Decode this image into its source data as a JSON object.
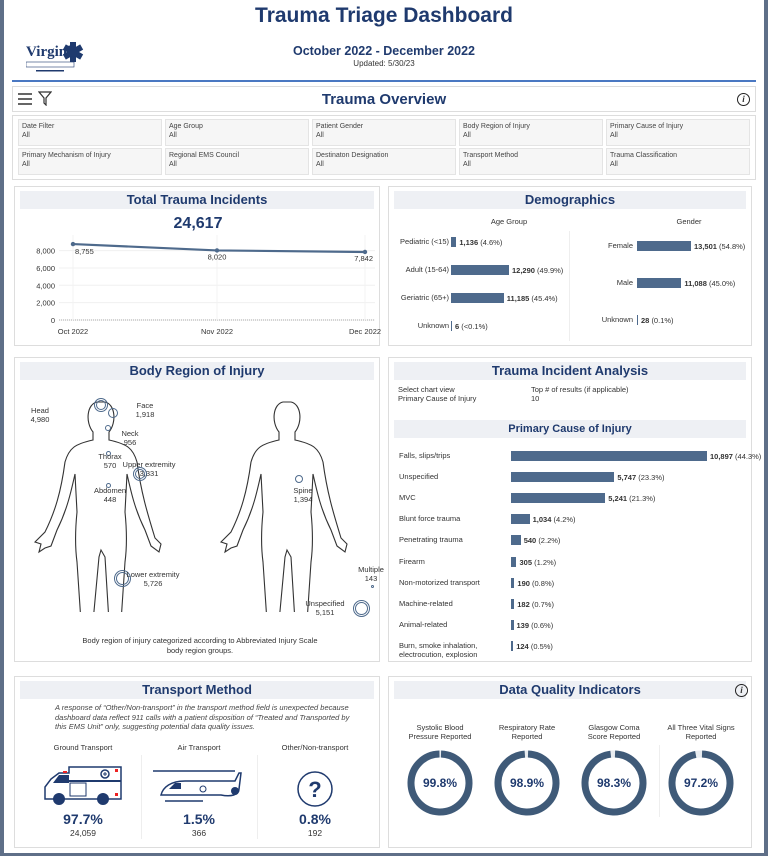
{
  "header": {
    "title": "Trauma Triage Dashboard",
    "date_range": "October 2022 - December 2022",
    "updated": "Updated: 5/30/23",
    "logo_text": "Virginia Office of Emergency Medical Services"
  },
  "overview": {
    "title": "Trauma Overview",
    "menu_icon": "hamburger-icon",
    "filter_icon": "funnel-icon",
    "info_icon": "info-icon",
    "filters": [
      {
        "label": "Date Filter",
        "value": "All"
      },
      {
        "label": "Age Group",
        "value": "All"
      },
      {
        "label": "Patient Gender",
        "value": "All"
      },
      {
        "label": "Body Region of Injury",
        "value": "All"
      },
      {
        "label": "Primary Cause of Injury",
        "value": "All"
      },
      {
        "label": "Primary Mechanism of Injury",
        "value": "All"
      },
      {
        "label": "Regional EMS Council",
        "value": "All"
      },
      {
        "label": "Destinaton Designation",
        "value": "All"
      },
      {
        "label": "Transport Method",
        "value": "All"
      },
      {
        "label": "Trauma Classification",
        "value": "All"
      }
    ]
  },
  "total": {
    "title": "Total Trauma Incidents",
    "value": "24,617"
  },
  "chart_data": [
    {
      "type": "line",
      "title": "Total Trauma Incidents",
      "categories": [
        "Oct 2022",
        "Nov 2022",
        "Dec 2022"
      ],
      "values": [
        8755,
        8020,
        7842
      ],
      "data_labels": [
        "8,755",
        "8,020",
        "7,842"
      ],
      "yticks": [
        "0",
        "2,000",
        "4,000",
        "6,000",
        "8,000"
      ],
      "ylim": [
        0,
        9800
      ],
      "grid": true,
      "color": "#4e6a8c"
    },
    {
      "type": "bar",
      "orientation": "horizontal",
      "title": "Age Group",
      "categories": [
        "Pediatric (<15)",
        "Adult (15-64)",
        "Geriatric (65+)",
        "Unknown"
      ],
      "values": [
        1136,
        12290,
        11185,
        6
      ],
      "data_labels": [
        "1,136",
        "12,290",
        "11,185",
        "6"
      ],
      "pct_labels": [
        "(4.6%)",
        "(49.9%)",
        "(45.4%)",
        "(<0.1%)"
      ]
    },
    {
      "type": "bar",
      "orientation": "horizontal",
      "title": "Gender",
      "categories": [
        "Female",
        "Male",
        "Unknown"
      ],
      "values": [
        13501,
        11088,
        28
      ],
      "data_labels": [
        "13,501",
        "11,088",
        "28"
      ],
      "pct_labels": [
        "(54.8%)",
        "(45.0%)",
        "(0.1%)"
      ]
    },
    {
      "type": "bar",
      "orientation": "horizontal",
      "title": "Primary Cause of Injury",
      "categories": [
        "Falls, slips/trips",
        "Unspecified",
        "MVC",
        "Blunt force trauma",
        "Penetrating trauma",
        "Firearm",
        "Non-motorized transport",
        "Machine-related",
        "Animal-related",
        "Burn, smoke inhalation, electrocution, explosion"
      ],
      "values": [
        10897,
        5747,
        5241,
        1034,
        540,
        305,
        190,
        182,
        139,
        124
      ],
      "data_labels": [
        "10,897",
        "5,747",
        "5,241",
        "1,034",
        "540",
        "305",
        "190",
        "182",
        "139",
        "124"
      ],
      "pct_labels": [
        "(44.3%)",
        "(23.3%)",
        "(21.3%)",
        "(4.2%)",
        "(2.2%)",
        "(1.2%)",
        "(0.8%)",
        "(0.7%)",
        "(0.6%)",
        "(0.5%)"
      ]
    }
  ],
  "demographics": {
    "title": "Demographics",
    "age_title": "Age Group",
    "gender_title": "Gender"
  },
  "body": {
    "title": "Body Region of Injury",
    "caption": "Body region of injury categorized according to Abbreviated Injury Scale body region groups.",
    "regions": [
      {
        "name": "Head",
        "value": "4,980"
      },
      {
        "name": "Face",
        "value": "1,918"
      },
      {
        "name": "Neck",
        "value": "956"
      },
      {
        "name": "Thorax",
        "value": "570"
      },
      {
        "name": "Upper extremity",
        "value": "3,331"
      },
      {
        "name": "Abdomen",
        "value": "448"
      },
      {
        "name": "Lower extremity",
        "value": "5,726"
      },
      {
        "name": "Spine",
        "value": "1,394"
      },
      {
        "name": "Multiple",
        "value": "143"
      },
      {
        "name": "Unspecified",
        "value": "5,151"
      }
    ]
  },
  "analysis": {
    "title": "Trauma Incident Analysis",
    "view_label": "Select chart view",
    "view_value": "Primary Cause of Injury",
    "top_label": "Top # of results (if applicable)",
    "top_value": "10",
    "chart_title": "Primary Cause of Injury"
  },
  "transport": {
    "title": "Transport Method",
    "note": "A response of “Other/Non-transport” in the transport method field is unexpected because dashboard data reflect 911 calls with a patient disposition of “Treated and Transported by this EMS Unit” only, suggesting potential data quality issues.",
    "items": [
      {
        "label": "Ground Transport",
        "pct": "97.7%",
        "count": "24,059",
        "icon": "ambulance-icon"
      },
      {
        "label": "Air Transport",
        "pct": "1.5%",
        "count": "366",
        "icon": "helicopter-icon"
      },
      {
        "label": "Other/Non-transport",
        "pct": "0.8%",
        "count": "192",
        "icon": "question-icon"
      }
    ]
  },
  "quality": {
    "title": "Data Quality Indicators",
    "info_icon": "info-icon",
    "items": [
      {
        "label": "Systolic Blood Pressure Reported",
        "pct": "99.8%",
        "value": 99.8
      },
      {
        "label": "Respiratory Rate Reported",
        "pct": "98.9%",
        "value": 98.9
      },
      {
        "label": "Glasgow Coma Score Reported",
        "pct": "98.3%",
        "value": 98.3
      },
      {
        "label": "All Three Vital Signs Reported",
        "pct": "97.2%",
        "value": 97.2
      }
    ]
  },
  "colors": {
    "brand": "#1f3a6e",
    "bar": "#4e6a8c",
    "donut": "#3f5a78",
    "accent_line": "#4a78c2"
  }
}
